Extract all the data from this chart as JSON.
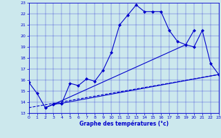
{
  "title": "Graphe des températures (°c)",
  "background_color": "#cce8ed",
  "line_color": "#0000cc",
  "xlim": [
    0,
    23
  ],
  "ylim": [
    13,
    23
  ],
  "xticks": [
    0,
    1,
    2,
    3,
    4,
    5,
    6,
    7,
    8,
    9,
    10,
    11,
    12,
    13,
    14,
    15,
    16,
    17,
    18,
    19,
    20,
    21,
    22,
    23
  ],
  "yticks": [
    13,
    14,
    15,
    16,
    17,
    18,
    19,
    20,
    21,
    22,
    23
  ],
  "figsize": [
    3.2,
    2.0
  ],
  "dpi": 100,
  "series": [
    {
      "x": [
        0,
        1,
        2,
        3,
        4,
        5,
        6,
        7,
        8,
        9,
        10,
        11,
        12,
        13,
        14,
        15,
        16,
        17,
        18,
        19,
        20
      ],
      "y": [
        15.8,
        14.8,
        13.5,
        13.8,
        13.9,
        15.7,
        15.5,
        16.1,
        15.9,
        16.9,
        18.5,
        21.0,
        21.9,
        22.8,
        22.2,
        22.2,
        22.2,
        20.5,
        19.5,
        19.2,
        20.5
      ],
      "marker": "D",
      "markersize": 2,
      "linewidth": 0.8
    },
    {
      "x": [
        3,
        19,
        20,
        21,
        22,
        23
      ],
      "y": [
        13.8,
        19.2,
        19.0,
        20.5,
        17.5,
        16.5
      ],
      "marker": "D",
      "markersize": 2,
      "linewidth": 0.8
    },
    {
      "x": [
        2,
        3,
        4,
        23
      ],
      "y": [
        13.5,
        13.8,
        13.9,
        16.5
      ],
      "marker": "D",
      "markersize": 2,
      "linewidth": 0.8
    },
    {
      "x": [
        0,
        23
      ],
      "y": [
        13.5,
        16.5
      ],
      "marker": null,
      "markersize": 0,
      "linewidth": 0.8,
      "linestyle": "--"
    }
  ],
  "xlabel_fontsize": 5.5,
  "tick_fontsize": 4.5,
  "grid_linewidth": 0.3,
  "grid_alpha": 0.7
}
